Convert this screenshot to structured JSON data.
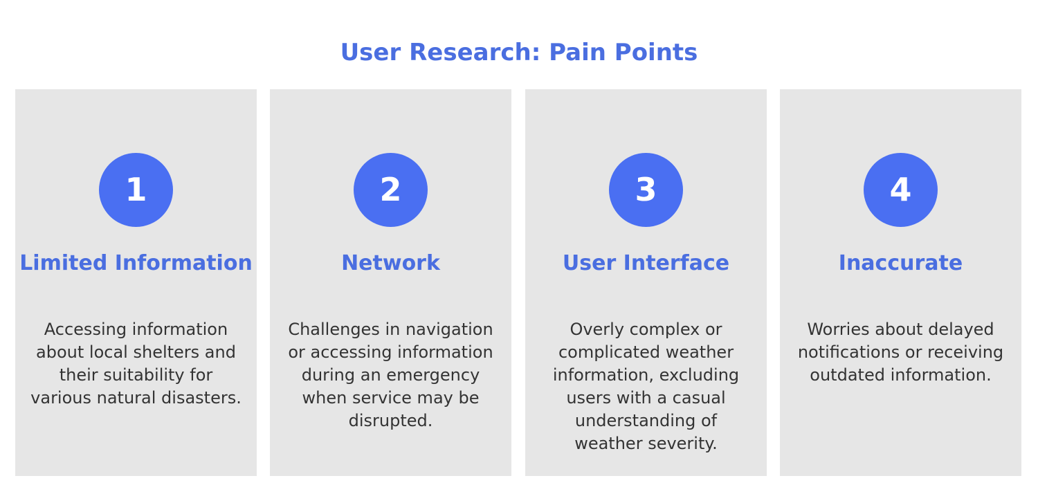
{
  "title": "User Research: Pain Points",
  "colors": {
    "accent": "#4a6ee0",
    "badge": "#4a6ff2",
    "card_bg": "#e6e6e6",
    "text": "#333333"
  },
  "cards": [
    {
      "number": "1",
      "title": "Limited Information",
      "description": "Accessing information about local shelters and their suitability for various natural disasters."
    },
    {
      "number": "2",
      "title": "Network",
      "description": "Challenges in navigation or accessing information during an emergency when service may be disrupted."
    },
    {
      "number": "3",
      "title": "User Interface",
      "description": "Overly complex or complicated weather information, excluding users with a casual understanding of weather severity."
    },
    {
      "number": "4",
      "title": "Inaccurate",
      "description": "Worries about delayed notifications or receiving outdated information."
    }
  ]
}
